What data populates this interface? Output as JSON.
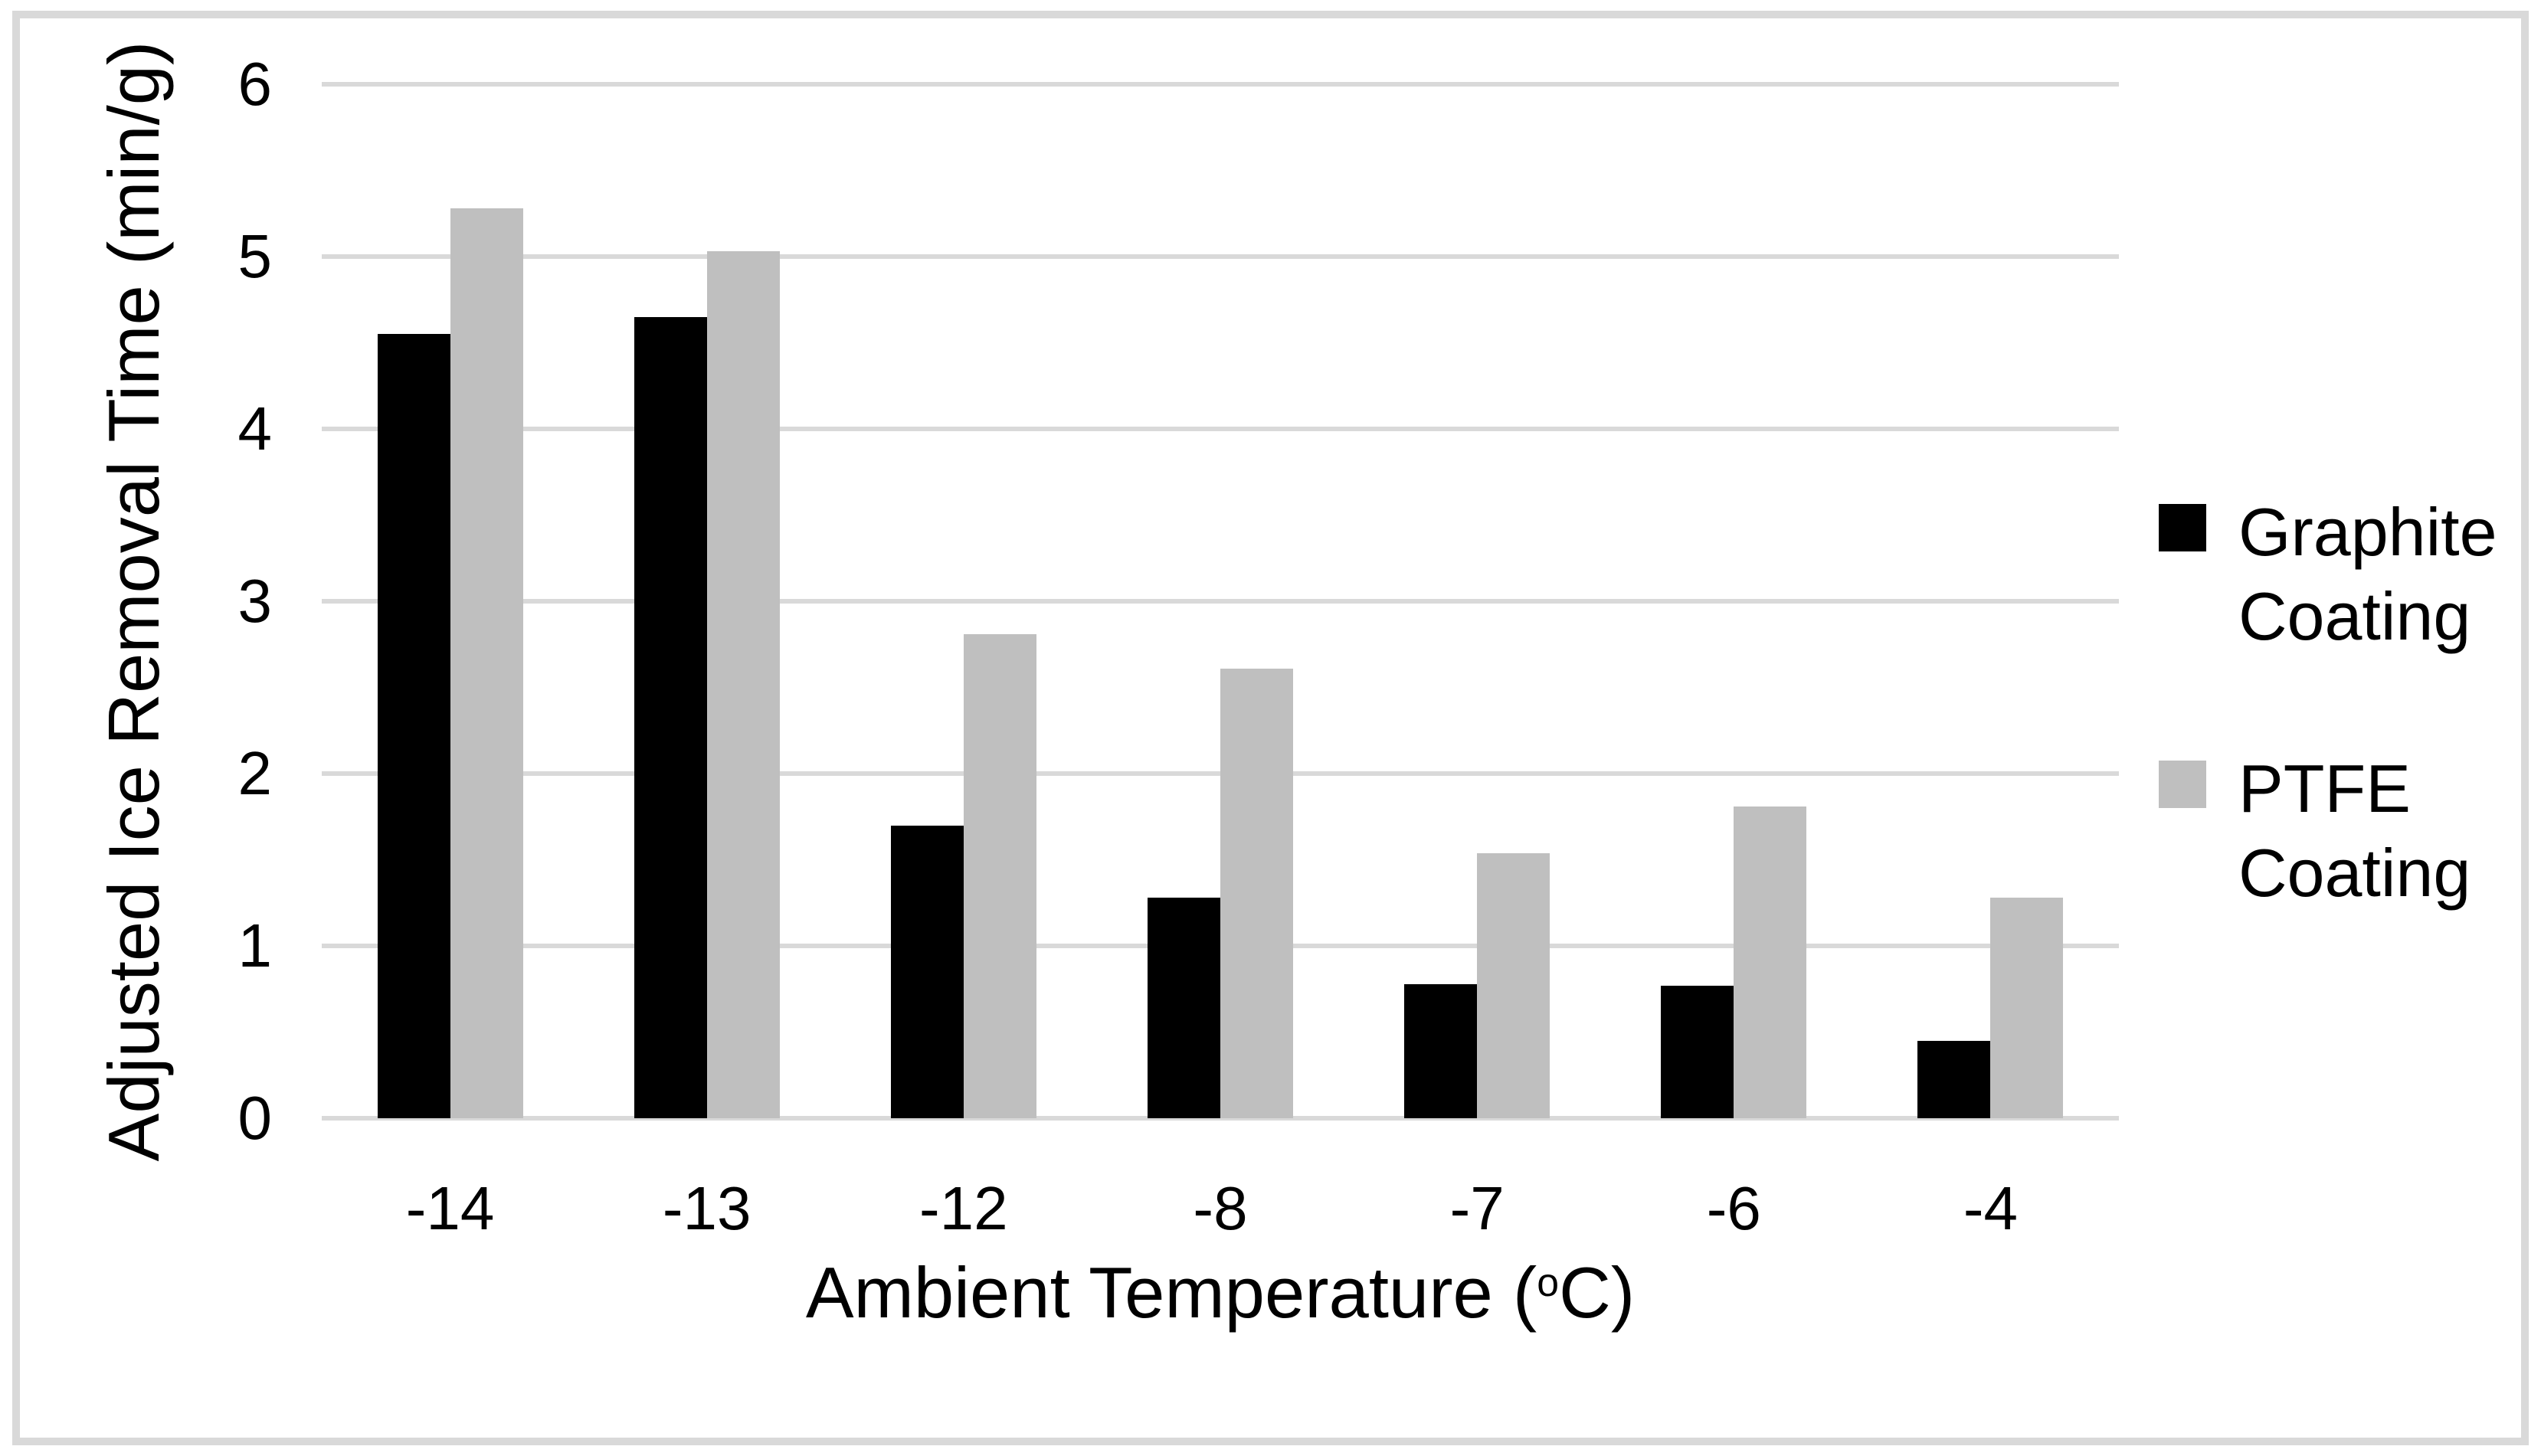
{
  "figure": {
    "background": "#FFFFFF",
    "border_color": "#D9D9D9"
  },
  "chart_data": {
    "type": "bar",
    "title": "",
    "categories": [
      "-14",
      "-13",
      "-12",
      "-8",
      "-7",
      "-6",
      "-4"
    ],
    "series": [
      {
        "name": "Graphite Coating",
        "color": "#000000",
        "values": [
          4.55,
          4.65,
          1.7,
          1.28,
          0.78,
          0.77,
          0.45
        ]
      },
      {
        "name": "PTFE Coating",
        "color": "#BFBFBF",
        "values": [
          5.28,
          5.03,
          2.81,
          2.61,
          1.54,
          1.81,
          1.28
        ]
      }
    ],
    "xlabel": "Ambient Temperature (oC)",
    "xlabel_parts": {
      "prefix": "Ambient Temperature (",
      "superscript": "o",
      "suffix": "C)"
    },
    "ylabel": "Adjusted Ice Removal Time (min/g)",
    "ylim": [
      0,
      6
    ],
    "yticks": [
      0,
      1,
      2,
      3,
      4,
      5,
      6
    ],
    "grid": true,
    "legend_position": "right",
    "colors": {
      "gridline": "#D9D9D9",
      "text": "#000000"
    }
  }
}
